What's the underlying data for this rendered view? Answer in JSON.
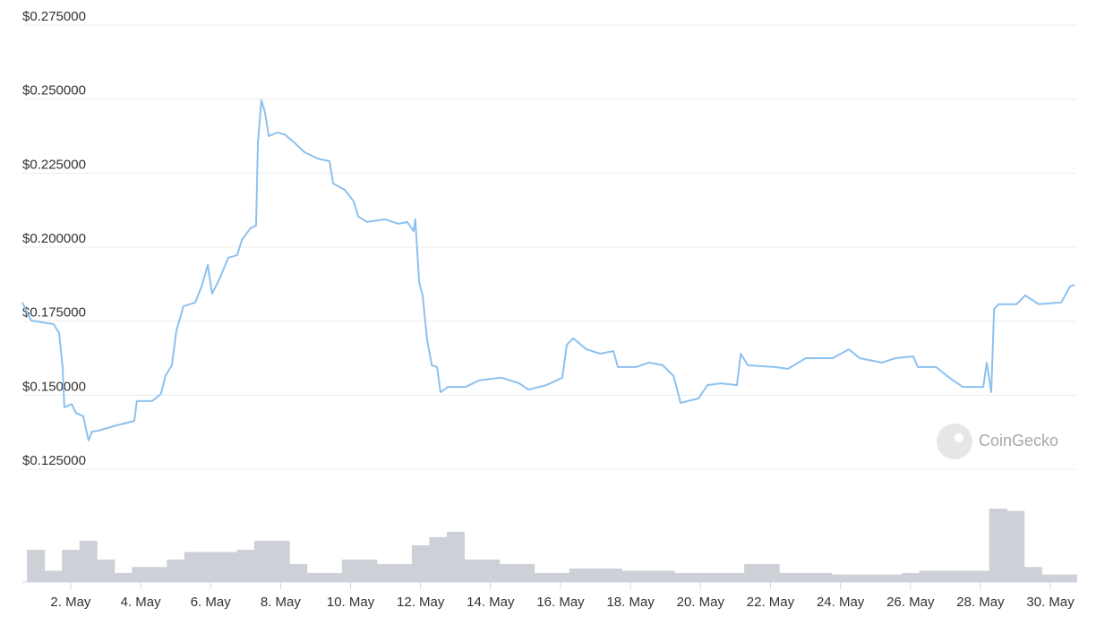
{
  "chart_data": {
    "type": "line",
    "color": "#8dc1ef",
    "grid": true,
    "watermark": "CoinGecko",
    "ylim": [
      0.125,
      0.275
    ],
    "yticks": [
      {
        "value": 0.125,
        "label": "$0.125000"
      },
      {
        "value": 0.15,
        "label": "$0.150000"
      },
      {
        "value": 0.175,
        "label": "$0.175000"
      },
      {
        "value": 0.2,
        "label": "$0.200000"
      },
      {
        "value": 0.225,
        "label": "$0.225000"
      },
      {
        "value": 0.25,
        "label": "$0.250000"
      },
      {
        "value": 0.275,
        "label": "$0.275000"
      }
    ],
    "xlim": [
      0.62,
      30.74
    ],
    "xticks": [
      {
        "value": 2,
        "label": "2. May"
      },
      {
        "value": 4,
        "label": "4. May"
      },
      {
        "value": 6,
        "label": "6. May"
      },
      {
        "value": 8,
        "label": "8. May"
      },
      {
        "value": 10,
        "label": "10. May"
      },
      {
        "value": 12,
        "label": "12. May"
      },
      {
        "value": 14,
        "label": "14. May"
      },
      {
        "value": 16,
        "label": "16. May"
      },
      {
        "value": 18,
        "label": "18. May"
      },
      {
        "value": 20,
        "label": "20. May"
      },
      {
        "value": 22,
        "label": "22. May"
      },
      {
        "value": 24,
        "label": "24. May"
      },
      {
        "value": 26,
        "label": "26. May"
      },
      {
        "value": 28,
        "label": "28. May"
      },
      {
        "value": 30,
        "label": "30. May"
      }
    ],
    "x": [
      0.62,
      0.87,
      1.51,
      1.67,
      1.77,
      1.82,
      2.03,
      2.15,
      2.36,
      2.51,
      2.61,
      2.79,
      3.31,
      3.82,
      3.89,
      4.33,
      4.58,
      4.71,
      4.89,
      5.02,
      5.22,
      5.56,
      5.74,
      5.92,
      6.04,
      6.25,
      6.5,
      6.76,
      6.89,
      7.14,
      7.3,
      7.35,
      7.45,
      7.55,
      7.66,
      7.91,
      8.12,
      8.42,
      8.68,
      9.06,
      9.4,
      9.5,
      9.83,
      10.09,
      10.22,
      10.47,
      10.98,
      11.37,
      11.62,
      11.8,
      11.85,
      11.96,
      12.06,
      12.19,
      12.32,
      12.47,
      12.57,
      12.78,
      13.29,
      13.67,
      14.31,
      14.82,
      15.08,
      15.59,
      16.05,
      16.18,
      16.36,
      16.74,
      17.13,
      17.51,
      17.64,
      18.15,
      18.53,
      18.92,
      19.23,
      19.43,
      19.94,
      20.2,
      20.58,
      21.04,
      21.15,
      21.35,
      22.12,
      22.5,
      23.01,
      23.78,
      24.24,
      24.55,
      25.19,
      25.57,
      26.08,
      26.21,
      26.73,
      27.11,
      27.49,
      28.08,
      28.18,
      28.31,
      28.39,
      28.52,
      29.03,
      29.28,
      29.67,
      30.31,
      30.56,
      30.69
    ],
    "values": [
      0.1813,
      0.1752,
      0.174,
      0.171,
      0.1595,
      0.1459,
      0.147,
      0.144,
      0.1429,
      0.1347,
      0.1377,
      0.138,
      0.1398,
      0.1413,
      0.148,
      0.148,
      0.1504,
      0.1565,
      0.1601,
      0.1716,
      0.18,
      0.1813,
      0.1867,
      0.194,
      0.1843,
      0.1891,
      0.1964,
      0.1973,
      0.2024,
      0.2064,
      0.2073,
      0.2351,
      0.2496,
      0.2457,
      0.2375,
      0.2387,
      0.238,
      0.235,
      0.2321,
      0.2299,
      0.229,
      0.2215,
      0.2194,
      0.2154,
      0.2103,
      0.2085,
      0.2094,
      0.2079,
      0.2085,
      0.2054,
      0.2094,
      0.1882,
      0.1837,
      0.1685,
      0.1601,
      0.1595,
      0.151,
      0.1528,
      0.1528,
      0.155,
      0.1559,
      0.154,
      0.1519,
      0.1534,
      0.1559,
      0.167,
      0.1692,
      0.1655,
      0.164,
      0.1649,
      0.1595,
      0.1595,
      0.161,
      0.1601,
      0.1565,
      0.1474,
      0.1489,
      0.1534,
      0.154,
      0.1534,
      0.164,
      0.1601,
      0.1595,
      0.1589,
      0.1625,
      0.1625,
      0.1655,
      0.1625,
      0.161,
      0.1625,
      0.1631,
      0.1595,
      0.1595,
      0.1559,
      0.1528,
      0.1528,
      0.161,
      0.151,
      0.1791,
      0.1807,
      0.1807,
      0.1837,
      0.1807,
      0.1813,
      0.1867,
      0.1873
    ],
    "volume": {
      "color": "#cdd0d6",
      "x": [
        1,
        1.5,
        2,
        2.5,
        3,
        3.5,
        4,
        4.5,
        5,
        5.5,
        6,
        6.5,
        7,
        7.5,
        8,
        8.5,
        9,
        9.5,
        10,
        10.5,
        11,
        11.5,
        12,
        12.5,
        13,
        13.5,
        14,
        14.5,
        15,
        15.5,
        16,
        16.5,
        17,
        17.5,
        18,
        18.5,
        19,
        19.5,
        20,
        20.5,
        21,
        21.5,
        22,
        22.5,
        23,
        23.5,
        24,
        24.5,
        25,
        25.5,
        26,
        26.5,
        27,
        27.5,
        28,
        28.5,
        29,
        29.5,
        30,
        30.5
      ],
      "values": [
        43,
        15,
        43,
        55,
        30,
        12,
        20,
        20,
        30,
        40,
        40,
        40,
        43,
        55,
        55,
        24,
        12,
        12,
        30,
        30,
        24,
        24,
        49,
        60,
        67,
        30,
        30,
        24,
        24,
        12,
        12,
        18,
        18,
        18,
        15,
        15,
        15,
        12,
        12,
        12,
        12,
        24,
        24,
        12,
        12,
        12,
        10,
        10,
        10,
        10,
        12,
        15,
        15,
        15,
        15,
        98,
        95,
        20,
        10,
        10
      ]
    }
  }
}
